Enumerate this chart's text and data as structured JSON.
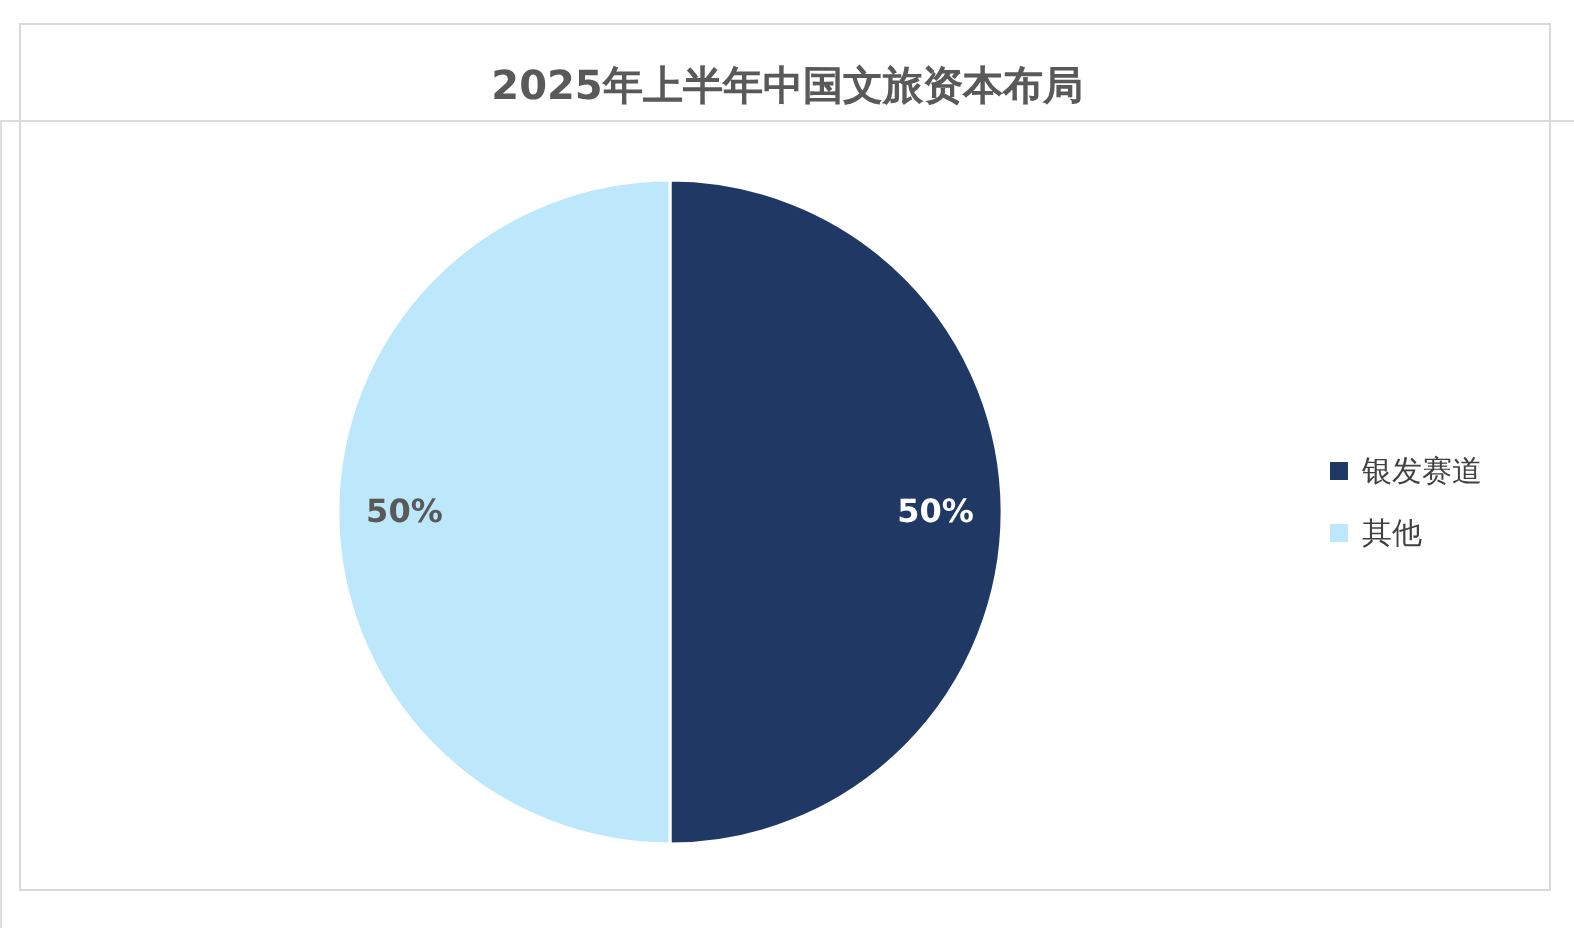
{
  "chart_data": {
    "type": "pie",
    "title": "2025年上半年中国文旅资本布局",
    "categories": [
      "银发赛道",
      "其他"
    ],
    "values": [
      50,
      50
    ],
    "colors": [
      "#1f3864",
      "#bde7fb"
    ],
    "value_labels": [
      "50%",
      "50%"
    ],
    "legend": "right"
  }
}
